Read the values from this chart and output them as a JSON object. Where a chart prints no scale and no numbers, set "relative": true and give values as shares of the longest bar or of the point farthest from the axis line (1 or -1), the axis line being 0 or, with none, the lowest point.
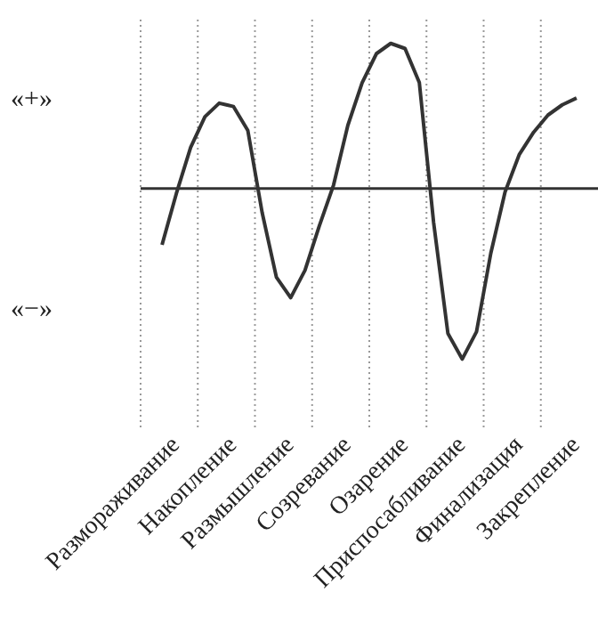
{
  "chart_data": {
    "type": "line",
    "relative": true,
    "categories": [
      null,
      null,
      "Размораживание",
      null,
      null,
      null,
      "Накопление",
      null,
      null,
      null,
      "Размышление",
      null,
      null,
      null,
      "Созревание",
      null,
      null,
      null,
      "Озарение",
      null,
      null,
      null,
      "Приспосабливание",
      null,
      null,
      null,
      "Финализация",
      null,
      null,
      null,
      "Закрепление",
      null
    ],
    "grid": "x",
    "marker": "none",
    "line_style": "solid",
    "annotations": [
      "«+»",
      "«−»"
    ],
    "series": [
      {
        "color": "#333333",
        "values": [
          null,
          -0.33,
          -0.03,
          0.24,
          0.42,
          0.5,
          0.48,
          0.34,
          -0.14,
          -0.52,
          -0.64,
          -0.48,
          -0.22,
          0.02,
          0.37,
          0.62,
          0.79,
          0.85,
          0.82,
          0.62,
          -0.2,
          -0.85,
          -1,
          -0.84,
          -0.38,
          -0.02,
          0.2,
          0.33,
          0.43,
          0.49,
          0.53,
          null
        ]
      }
    ]
  }
}
